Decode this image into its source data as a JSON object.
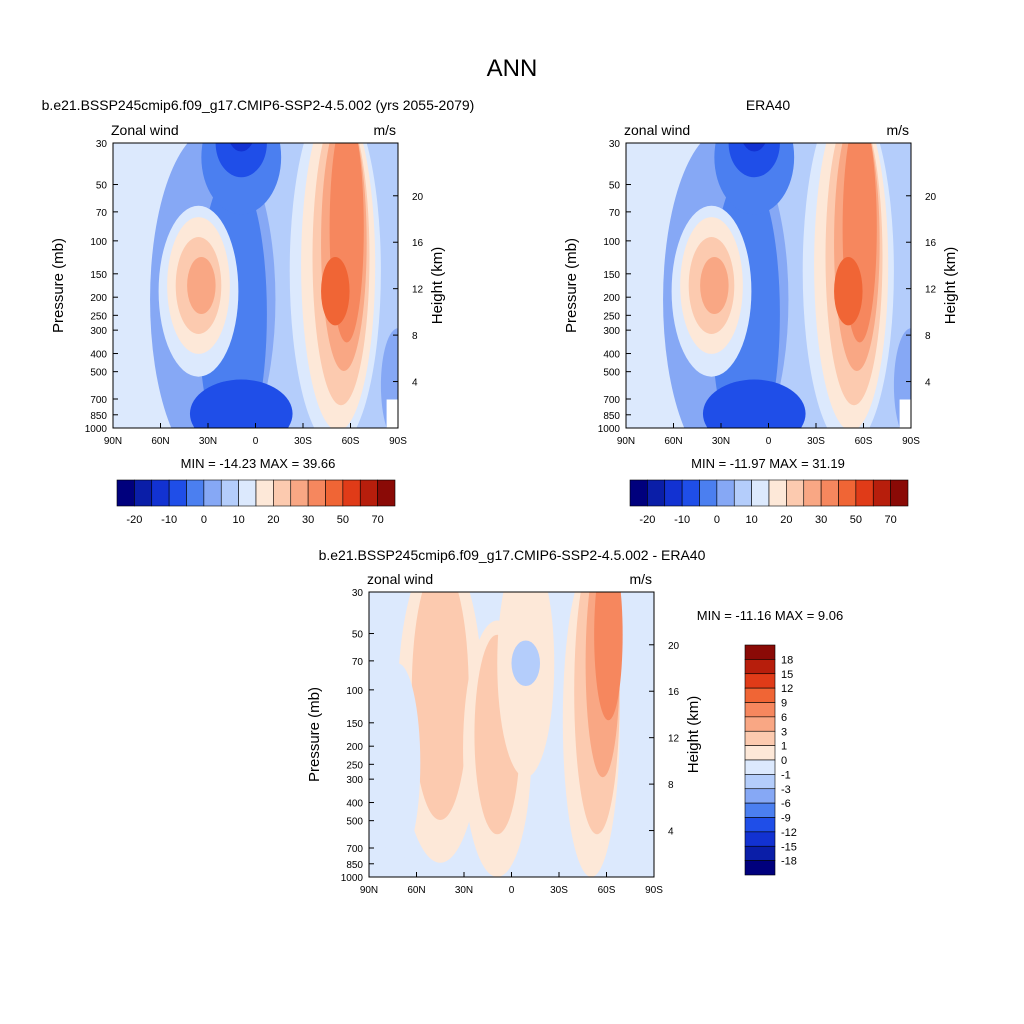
{
  "main_title": "ANN",
  "palette": {
    "blue": [
      "#00007d",
      "#0a1ea8",
      "#1232d2",
      "#1f4ee8",
      "#4b7ff0",
      "#86a8f5",
      "#b4cdfb",
      "#dce9fd"
    ],
    "red": [
      "#fde8d8",
      "#fccaaf",
      "#f9a784",
      "#f6875e",
      "#f06535",
      "#e03b18",
      "#b71e0c",
      "#8a0a06"
    ]
  },
  "chart_data": [
    {
      "type": "contour",
      "title": "b.e21.BSSP245cmip6.f09_g17.CMIP6-SSP2-4.5.002 (yrs 2055-2079)",
      "left_label": "Zonal wind",
      "right_label": "m/s",
      "ylabel": "Pressure (mb)",
      "y2label": "Height (km)",
      "xticks": [
        "90N",
        "60N",
        "30N",
        "0",
        "30S",
        "60S",
        "90S"
      ],
      "yticks": [
        "30",
        "50",
        "70",
        "100",
        "150",
        "200",
        "250",
        "300",
        "400",
        "500",
        "700",
        "850",
        "1000"
      ],
      "y2ticks": [
        "20",
        "16",
        "12",
        "8",
        "4"
      ],
      "min": "-14.23",
      "max": "39.66",
      "stats_text": "MIN = -14.23  MAX =  39.66",
      "colorbar_labels": [
        "-20",
        "-10",
        "0",
        "10",
        "20",
        "30",
        "50",
        "70"
      ]
    },
    {
      "type": "contour",
      "title": "ERA40",
      "left_label": "zonal wind",
      "right_label": "m/s",
      "ylabel": "Pressure (mb)",
      "y2label": "Height (km)",
      "xticks": [
        "90N",
        "60N",
        "30N",
        "0",
        "30S",
        "60S",
        "90S"
      ],
      "yticks": [
        "30",
        "50",
        "70",
        "100",
        "150",
        "200",
        "250",
        "300",
        "400",
        "500",
        "700",
        "850",
        "1000"
      ],
      "y2ticks": [
        "20",
        "16",
        "12",
        "8",
        "4"
      ],
      "min": "-11.97",
      "max": "31.19",
      "stats_text": "MIN = -11.97  MAX =  31.19",
      "colorbar_labels": [
        "-20",
        "-10",
        "0",
        "10",
        "20",
        "30",
        "50",
        "70"
      ]
    },
    {
      "type": "contour",
      "title": "b.e21.BSSP245cmip6.f09_g17.CMIP6-SSP2-4.5.002 - ERA40",
      "left_label": "zonal wind",
      "right_label": "m/s",
      "ylabel": "Pressure (mb)",
      "y2label": "Height (km)",
      "xticks": [
        "90N",
        "60N",
        "30N",
        "0",
        "30S",
        "60S",
        "90S"
      ],
      "yticks": [
        "30",
        "50",
        "70",
        "100",
        "150",
        "200",
        "250",
        "300",
        "400",
        "500",
        "700",
        "850",
        "1000"
      ],
      "y2ticks": [
        "20",
        "16",
        "12",
        "8",
        "4"
      ],
      "min": "-11.16",
      "max": "9.06",
      "stats_text": "MIN = -11.16  MAX =   9.06",
      "colorbar_labels": [
        "18",
        "15",
        "12",
        "9",
        "6",
        "3",
        "1",
        "0",
        "-1",
        "-3",
        "-6",
        "-9",
        "-12",
        "-15",
        "-18"
      ]
    }
  ]
}
